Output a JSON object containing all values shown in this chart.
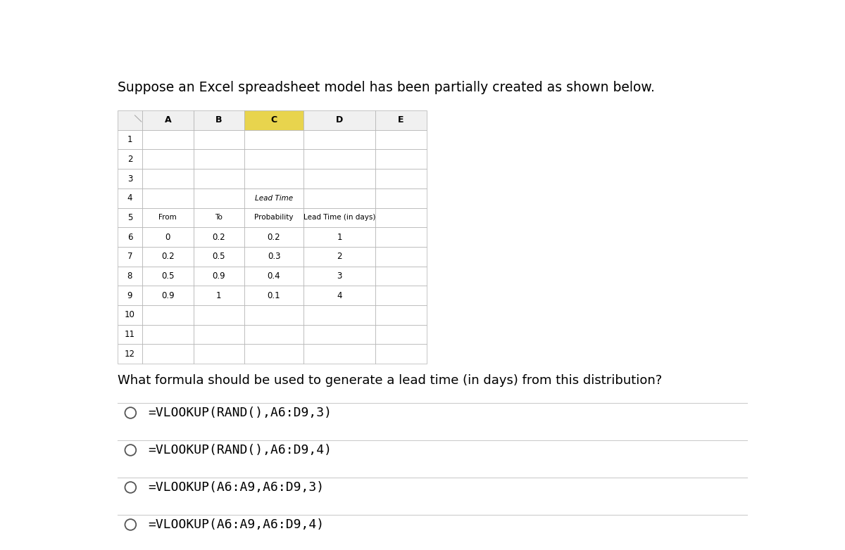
{
  "title": "Suppose an Excel spreadsheet model has been partially created as shown below.",
  "question": "What formula should be used to generate a lead time (in days) from this distribution?",
  "options": [
    "=VLOOKUP(RAND(),A6:D9,3)",
    "=VLOOKUP(RAND(),A6:D9,4)",
    "=VLOOKUP(A6:A9,A6:D9,3)",
    "=VLOOKUP(A6:A9,A6:D9,4)"
  ],
  "col_headers": [
    "A",
    "B",
    "C",
    "D",
    "E"
  ],
  "row_numbers": [
    "1",
    "2",
    "3",
    "4",
    "5",
    "6",
    "7",
    "8",
    "9",
    "10",
    "11",
    "12"
  ],
  "data_rows": [
    [
      "0",
      "0.2",
      "0.2",
      "1"
    ],
    [
      "0.2",
      "0.5",
      "0.3",
      "2"
    ],
    [
      "0.5",
      "0.9",
      "0.4",
      "3"
    ],
    [
      "0.9",
      "1",
      "0.1",
      "4"
    ]
  ],
  "highlighted_col_idx": 3,
  "col_header_bg": "#f0f0f0",
  "highlighted_col_header_bg": "#e8d44d",
  "cell_bg": "#ffffff",
  "grid_color": "#b0b0b0",
  "text_color": "#000000",
  "title_fontsize": 13.5,
  "question_fontsize": 13,
  "option_fontsize": 13,
  "bg_color": "#ffffff",
  "line_color": "#cccccc"
}
